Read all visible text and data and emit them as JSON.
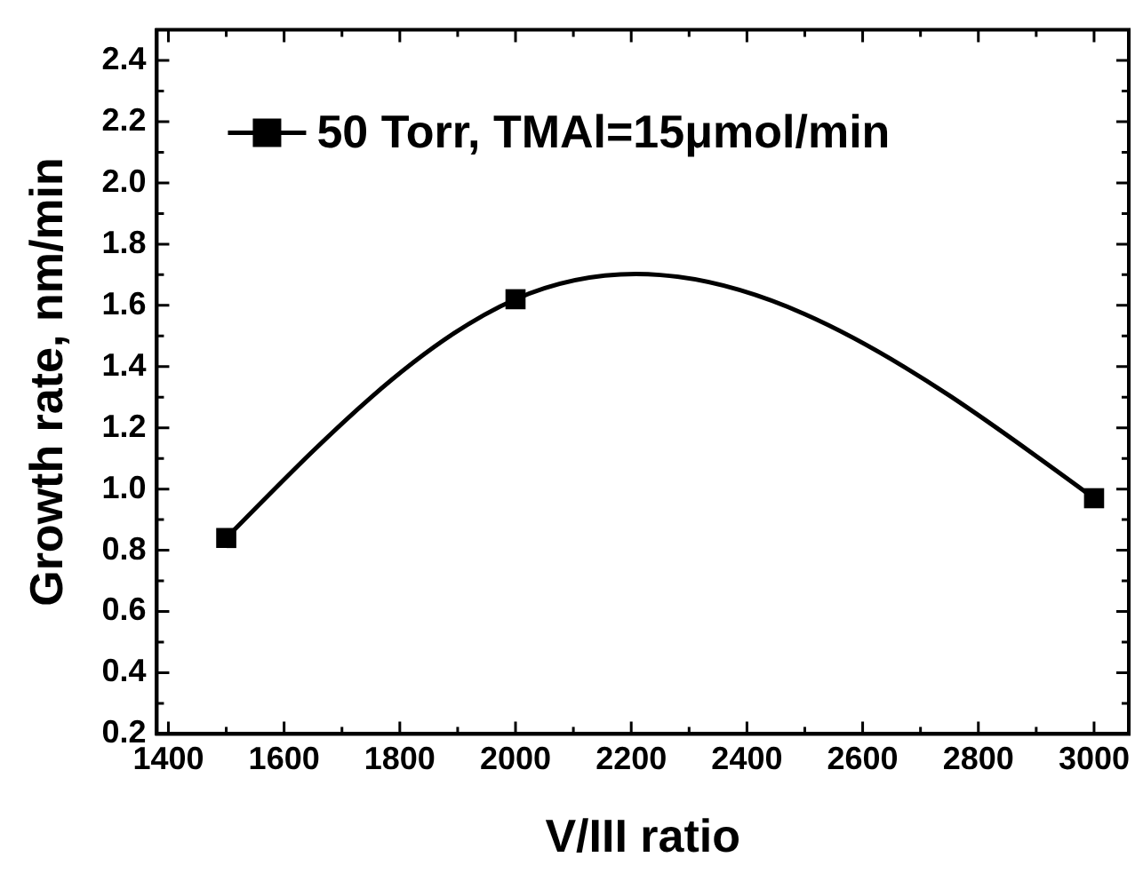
{
  "chart_data": {
    "type": "line",
    "xlabel": "V/III ratio",
    "ylabel": "Growth rate, nm/min",
    "x": [
      1500,
      2000,
      3000
    ],
    "series": [
      {
        "name": "50 Torr, TMAl=15μmol/min",
        "color": "#000000",
        "values": [
          0.84,
          1.62,
          0.97
        ]
      }
    ],
    "xlim": [
      1380,
      3060
    ],
    "xticks": [
      1400,
      1600,
      1800,
      2000,
      2200,
      2400,
      2600,
      2800,
      3000
    ],
    "ylim": [
      0.2,
      2.5
    ],
    "yticks": [
      0.2,
      0.4,
      0.6,
      0.8,
      {
        "value": 1,
        "label": "1.0"
      },
      1.2,
      1.4,
      1.6,
      1.8,
      {
        "value": 2,
        "label": "2.0"
      },
      2.2,
      2.4
    ],
    "grid": false,
    "legend": "top left",
    "marker": "square",
    "line_style": "solid"
  }
}
